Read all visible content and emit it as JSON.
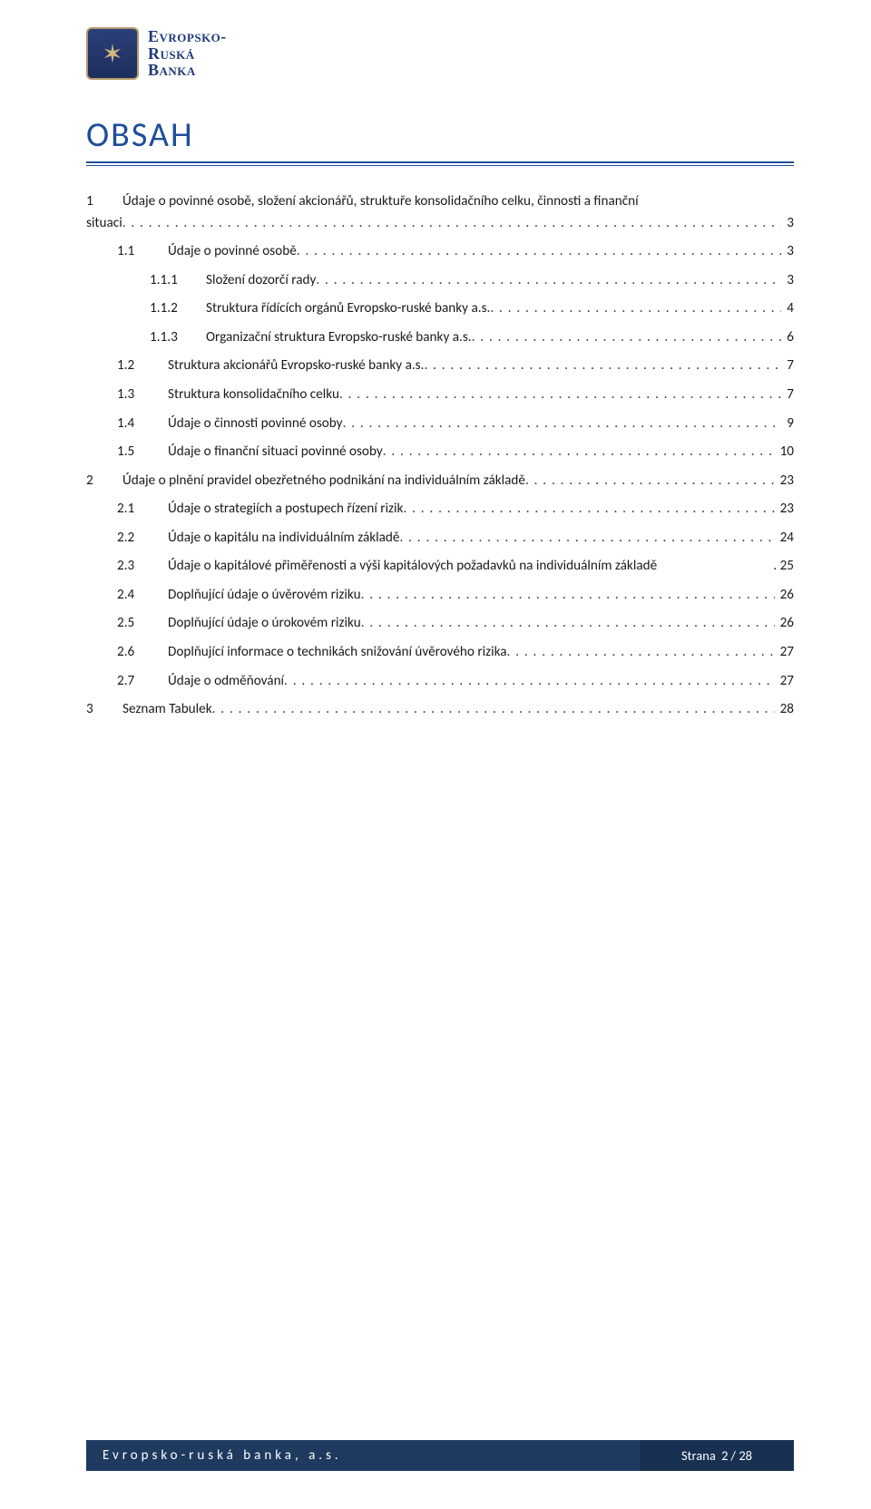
{
  "logo": {
    "line1": "Evropsko-",
    "line2": "Ruská",
    "line3": "Banka"
  },
  "title": "OBSAH",
  "colors": {
    "heading": "#1f4e9b",
    "logo_text": "#1f3a7a",
    "logo_bg_top": "#2a3f7a",
    "logo_bg_bottom": "#1e2e5c",
    "logo_border": "#b4996a",
    "logo_glyph": "#d4b97a",
    "text": "#1a1a1a",
    "footer_left_bg": "#1f3a5f",
    "footer_right_bg": "#183052",
    "footer_text": "#ffffff",
    "page_bg": "#ffffff"
  },
  "fonts": {
    "body_family": "Calibri, Arial, sans-serif",
    "logo_family": "Georgia, 'Times New Roman', serif",
    "title_size_pt": 28,
    "body_size_pt": 11
  },
  "toc": [
    {
      "level": 0,
      "num": "1",
      "text_a": "Údaje o povinné osobě, složení akcionářů, struktuře konsolidačního celku, činnosti a finanční",
      "text_b": "situaci",
      "page": "3",
      "wrap": true
    },
    {
      "level": 1,
      "num": "1.1",
      "text": "Údaje o povinné osobě",
      "page": "3"
    },
    {
      "level": 2,
      "num": "1.1.1",
      "text": "Složení dozorčí rady",
      "page": "3"
    },
    {
      "level": 2,
      "num": "1.1.2",
      "text": "Struktura řídících orgánů Evropsko-ruské banky a.s.",
      "page": "4"
    },
    {
      "level": 2,
      "num": "1.1.3",
      "text": "Organizační struktura Evropsko-ruské banky a.s.",
      "page": "6"
    },
    {
      "level": 1,
      "num": "1.2",
      "text": "Struktura akcionářů Evropsko-ruské banky a.s.",
      "page": "7"
    },
    {
      "level": 1,
      "num": "1.3",
      "text": "Struktura konsolidačního celku",
      "page": "7"
    },
    {
      "level": 1,
      "num": "1.4",
      "text": "Údaje o činnosti povinné osoby",
      "page": "9"
    },
    {
      "level": 1,
      "num": "1.5",
      "text": "Údaje o finanční situaci povinné osoby",
      "page": "10"
    },
    {
      "level": 0,
      "num": "2",
      "text": "Údaje o plnění pravidel obezřetného podnikání na individuálním základě",
      "page": "23"
    },
    {
      "level": 1,
      "num": "2.1",
      "text": "Údaje o strategiích a postupech řízení rizik",
      "page": "23"
    },
    {
      "level": 1,
      "num": "2.2",
      "text": "Údaje o kapitálu na individuálním základě",
      "page": "24"
    },
    {
      "level": 1,
      "num": "2.3",
      "text": "Údaje o kapitálové přiměřenosti a výši kapitálových požadavků na individuálním základě",
      "page": "25",
      "no_leader": true
    },
    {
      "level": 1,
      "num": "2.4",
      "text": "Doplňující údaje o úvěrovém riziku",
      "page": "26"
    },
    {
      "level": 1,
      "num": "2.5",
      "text": "Doplňující údaje o úrokovém riziku",
      "page": "26"
    },
    {
      "level": 1,
      "num": "2.6",
      "text": "Doplňující informace o technikách snižování úvěrového rizika",
      "page": "27"
    },
    {
      "level": 1,
      "num": "2.7",
      "text": "Údaje o odměňování",
      "page": "27"
    },
    {
      "level": 0,
      "num": "3",
      "text": "Seznam Tabulek",
      "page": "28"
    }
  ],
  "footer": {
    "left": "Evropsko-ruská banka, a.s.",
    "right_label": "Strana",
    "right_current": "2",
    "right_sep": "/",
    "right_total": "28"
  }
}
